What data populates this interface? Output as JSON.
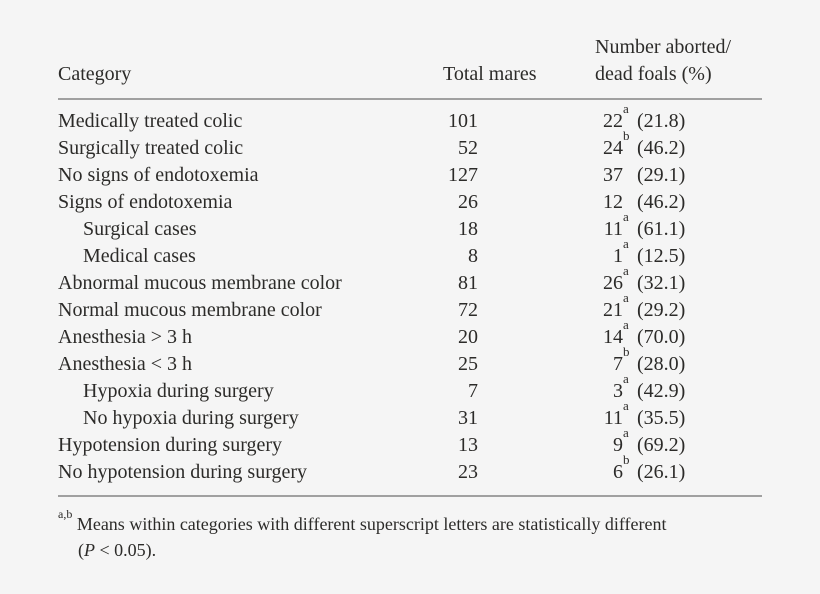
{
  "colors": {
    "background": "#f5f5f5",
    "text": "#2c2b29",
    "rule": "#a0a0a0"
  },
  "table": {
    "columns": {
      "category": "Category",
      "total_mares": "Total mares",
      "aborted_line1": "Number aborted/",
      "aborted_line2": "dead foals (%)"
    },
    "rows": [
      {
        "category": "Medically treated colic",
        "indent": false,
        "total": "101",
        "count": "22",
        "sup": "a",
        "pct": "(21.8)"
      },
      {
        "category": "Surgically treated colic",
        "indent": false,
        "total": "52",
        "count": "24",
        "sup": "b",
        "pct": "(46.2)"
      },
      {
        "category": "No signs of endotoxemia",
        "indent": false,
        "total": "127",
        "count": "37",
        "sup": "",
        "pct": "(29.1)"
      },
      {
        "category": "Signs of endotoxemia",
        "indent": false,
        "total": "26",
        "count": "12",
        "sup": "",
        "pct": "(46.2)"
      },
      {
        "category": "Surgical cases",
        "indent": true,
        "total": "18",
        "count": "11",
        "sup": "a",
        "pct": "(61.1)"
      },
      {
        "category": "Medical cases",
        "indent": true,
        "total": "8",
        "count": "1",
        "sup": "a",
        "pct": "(12.5)"
      },
      {
        "category": "Abnormal mucous membrane color",
        "indent": false,
        "total": "81",
        "count": "26",
        "sup": "a",
        "pct": "(32.1)"
      },
      {
        "category": "Normal mucous membrane color",
        "indent": false,
        "total": "72",
        "count": "21",
        "sup": "a",
        "pct": "(29.2)"
      },
      {
        "category": "Anesthesia > 3 h",
        "indent": false,
        "total": "20",
        "count": "14",
        "sup": "a",
        "pct": "(70.0)"
      },
      {
        "category": "Anesthesia < 3 h",
        "indent": false,
        "total": "25",
        "count": "7",
        "sup": "b",
        "pct": "(28.0)"
      },
      {
        "category": "Hypoxia during surgery",
        "indent": true,
        "total": "7",
        "count": "3",
        "sup": "a",
        "pct": "(42.9)"
      },
      {
        "category": "No hypoxia during surgery",
        "indent": true,
        "total": "31",
        "count": "11",
        "sup": "a",
        "pct": "(35.5)"
      },
      {
        "category": "Hypotension during surgery",
        "indent": false,
        "total": "13",
        "count": "9",
        "sup": "a",
        "pct": "(69.2)"
      },
      {
        "category": "No hypotension during surgery",
        "indent": false,
        "total": "23",
        "count": "6",
        "sup": "b",
        "pct": "(26.1)"
      }
    ],
    "footnote": {
      "sup": "a,b",
      "line1": "Means within categories with different superscript letters are statistically different",
      "line2_pre": "(",
      "line2_italic": "P",
      "line2_post": " < 0.05)."
    }
  }
}
